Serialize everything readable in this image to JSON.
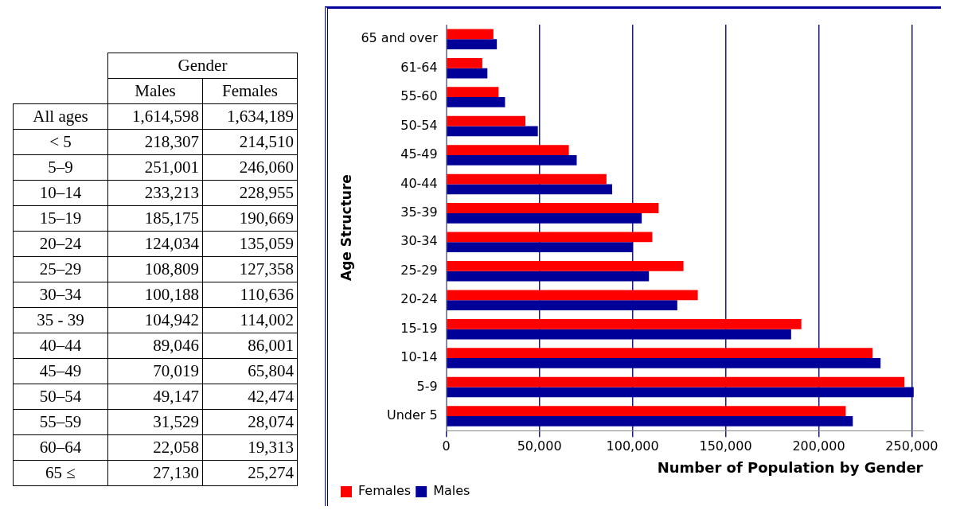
{
  "chart_data": [
    {
      "type": "other",
      "title": "Gender",
      "categories": [
        "All ages",
        "< 5",
        "5–9",
        "10–14",
        "15–19",
        "20–24",
        "25–29",
        "30–34",
        "35 - 39",
        "40–44",
        "45–49",
        "50–54",
        "55–59",
        "60–64",
        "65 ≤"
      ],
      "series": [
        {
          "name": "Males",
          "values": [
            1614598,
            218307,
            251001,
            233213,
            185175,
            124034,
            108809,
            100188,
            104942,
            89046,
            70019,
            49147,
            31529,
            22058,
            27130
          ],
          "value_labels": [
            "1,614,598",
            "218,307",
            "251,001",
            "233,213",
            "185,175",
            "124,034",
            "108,809",
            "100,188",
            "104,942",
            "89,046",
            "70,019",
            "49,147",
            "31,529",
            "22,058",
            "27,130"
          ]
        },
        {
          "name": "Females",
          "values": [
            1634189,
            214510,
            246060,
            228955,
            190669,
            135059,
            127358,
            110636,
            114002,
            86001,
            65804,
            42474,
            28074,
            19313,
            25274
          ],
          "value_labels": [
            "1,634,189",
            "214,510",
            "246,060",
            "228,955",
            "190,669",
            "135,059",
            "127,358",
            "110,636",
            "114,002",
            "86,001",
            "65,804",
            "42,474",
            "28,074",
            "19,313",
            "25,274"
          ]
        }
      ]
    },
    {
      "type": "bar",
      "orientation": "horizontal",
      "xlabel": "Number of Population by Gender",
      "ylabel": "Age Structure",
      "categories": [
        "65 and over",
        "61-64",
        "55-60",
        "50-54",
        "45-49",
        "40-44",
        "35-39",
        "30-34",
        "25-29",
        "20-24",
        "15-19",
        "10-14",
        "5-9",
        "Under 5"
      ],
      "series": [
        {
          "name": "Females",
          "color": "#ff0000",
          "values": [
            25274,
            19313,
            28074,
            42474,
            65804,
            86001,
            114002,
            110636,
            127358,
            135059,
            190669,
            228955,
            246060,
            214510
          ]
        },
        {
          "name": "Males",
          "color": "#000099",
          "values": [
            27130,
            22058,
            31529,
            49147,
            70019,
            89046,
            104942,
            100188,
            108809,
            124034,
            185175,
            233213,
            251001,
            218307
          ]
        }
      ],
      "xlim": [
        0,
        256000
      ],
      "xticks": [
        {
          "value": 0,
          "label": "0"
        },
        {
          "value": 50000,
          "label": "50,000"
        },
        {
          "value": 100000,
          "label": "100,000"
        },
        {
          "value": 150000,
          "label": "150,000"
        },
        {
          "value": 200000,
          "label": "200,000"
        },
        {
          "value": 250000,
          "label": "250,000"
        }
      ],
      "grid": "x",
      "legend": "bottom left"
    }
  ]
}
